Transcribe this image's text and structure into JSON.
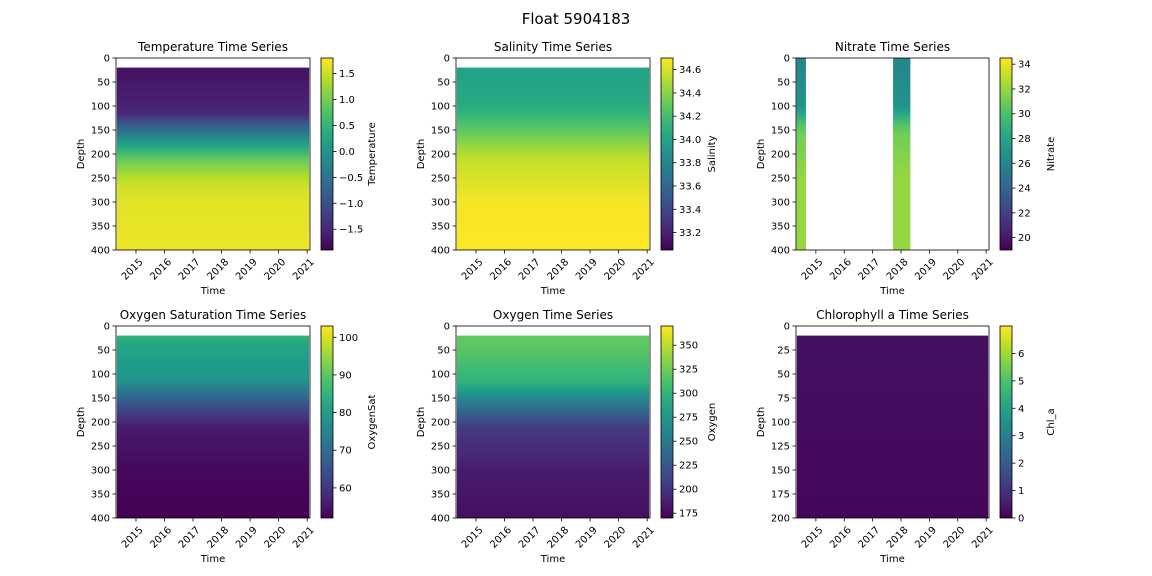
{
  "figure": {
    "title": "Float 5904183"
  },
  "chart_data": [
    {
      "type": "heatmap",
      "title": "Temperature Time Series",
      "xlabel": "Time",
      "ylabel": "Depth",
      "colorbar_label": "Temperature",
      "x_ticks": [
        "2015",
        "2016",
        "2017",
        "2018",
        "2019",
        "2020",
        "2021"
      ],
      "xlim": [
        2014.3,
        2021.1
      ],
      "y_ticks": [
        0,
        50,
        100,
        150,
        200,
        250,
        300,
        350,
        400
      ],
      "ylim": [
        400,
        0
      ],
      "cbar_ticks": [
        "−1.5",
        "−1.0",
        "−0.5",
        "0.0",
        "0.5",
        "1.0",
        "1.5"
      ],
      "cbar_range": [
        -1.9,
        1.8
      ],
      "surface_band_depth": 20,
      "profile": [
        [
          0,
          -1.7
        ],
        [
          20,
          -1.7
        ],
        [
          100,
          -1.5
        ],
        [
          150,
          -0.2
        ],
        [
          200,
          0.9
        ],
        [
          250,
          1.5
        ],
        [
          300,
          1.65
        ],
        [
          400,
          1.7
        ]
      ],
      "colormap": "viridis"
    },
    {
      "type": "heatmap",
      "title": "Salinity Time Series",
      "xlabel": "Time",
      "ylabel": "Depth",
      "colorbar_label": "Salinity",
      "x_ticks": [
        "2015",
        "2016",
        "2017",
        "2018",
        "2019",
        "2020",
        "2021"
      ],
      "xlim": [
        2014.3,
        2021.1
      ],
      "y_ticks": [
        0,
        50,
        100,
        150,
        200,
        250,
        300,
        350,
        400
      ],
      "ylim": [
        400,
        0
      ],
      "cbar_ticks": [
        "33.2",
        "33.4",
        "33.6",
        "33.8",
        "34.0",
        "34.2",
        "34.4",
        "34.6"
      ],
      "cbar_range": [
        33.05,
        34.7
      ],
      "surface_band_depth": 20,
      "profile": [
        [
          0,
          34.0
        ],
        [
          20,
          34.0
        ],
        [
          80,
          34.05
        ],
        [
          130,
          34.25
        ],
        [
          200,
          34.55
        ],
        [
          300,
          34.68
        ],
        [
          400,
          34.7
        ]
      ],
      "colormap": "viridis"
    },
    {
      "type": "heatmap",
      "title": "Nitrate Time Series",
      "xlabel": "Time",
      "ylabel": "Depth",
      "colorbar_label": "Nitrate",
      "x_ticks": [
        "2015",
        "2016",
        "2017",
        "2018",
        "2019",
        "2020",
        "2021"
      ],
      "xlim": [
        2014.3,
        2021.1
      ],
      "y_ticks": [
        0,
        50,
        100,
        150,
        200,
        250,
        300,
        350,
        400
      ],
      "ylim": [
        400,
        0
      ],
      "cbar_ticks": [
        "20",
        "22",
        "24",
        "26",
        "28",
        "30",
        "32",
        "34"
      ],
      "cbar_range": [
        19,
        34.5
      ],
      "data_windows": [
        [
          2014.32,
          2014.65
        ],
        [
          2017.72,
          2018.33
        ]
      ],
      "profile": [
        [
          0,
          26
        ],
        [
          100,
          27
        ],
        [
          150,
          31
        ],
        [
          250,
          32
        ],
        [
          400,
          32
        ]
      ],
      "colormap": "viridis"
    },
    {
      "type": "heatmap",
      "title": "Oxygen Saturation Time Series",
      "xlabel": "Time",
      "ylabel": "Depth",
      "colorbar_label": "OxygenSat",
      "x_ticks": [
        "2015",
        "2016",
        "2017",
        "2018",
        "2019",
        "2020",
        "2021"
      ],
      "xlim": [
        2014.3,
        2021.1
      ],
      "y_ticks": [
        0,
        50,
        100,
        150,
        200,
        250,
        300,
        350,
        400
      ],
      "ylim": [
        400,
        0
      ],
      "cbar_ticks": [
        "60",
        "70",
        "80",
        "90",
        "100"
      ],
      "cbar_range": [
        52,
        103
      ],
      "surface_band_depth": 20,
      "profile": [
        [
          0,
          85
        ],
        [
          20,
          82
        ],
        [
          100,
          78
        ],
        [
          150,
          65
        ],
        [
          200,
          56
        ],
        [
          300,
          53
        ],
        [
          400,
          52
        ]
      ],
      "colormap": "viridis"
    },
    {
      "type": "heatmap",
      "title": "Oxygen Time Series",
      "xlabel": "Time",
      "ylabel": "Depth",
      "colorbar_label": "Oxygen",
      "x_ticks": [
        "2015",
        "2016",
        "2017",
        "2018",
        "2019",
        "2020",
        "2021"
      ],
      "xlim": [
        2014.3,
        2021.1
      ],
      "y_ticks": [
        0,
        50,
        100,
        150,
        200,
        250,
        300,
        350,
        400
      ],
      "ylim": [
        400,
        0
      ],
      "cbar_ticks": [
        "175",
        "200",
        "225",
        "250",
        "275",
        "300",
        "325",
        "350"
      ],
      "cbar_range": [
        170,
        370
      ],
      "surface_band_depth": 20,
      "profile": [
        [
          0,
          320
        ],
        [
          20,
          320
        ],
        [
          100,
          300
        ],
        [
          150,
          250
        ],
        [
          200,
          205
        ],
        [
          300,
          185
        ],
        [
          400,
          178
        ]
      ],
      "colormap": "viridis"
    },
    {
      "type": "heatmap",
      "title": "Chlorophyll a Time Series",
      "xlabel": "Time",
      "ylabel": "Depth",
      "colorbar_label": "Chl_a",
      "x_ticks": [
        "2015",
        "2016",
        "2017",
        "2018",
        "2019",
        "2020",
        "2021"
      ],
      "xlim": [
        2014.3,
        2021.1
      ],
      "y_ticks": [
        0,
        25,
        50,
        75,
        100,
        125,
        150,
        175,
        200
      ],
      "ylim": [
        200,
        0
      ],
      "cbar_ticks": [
        "0",
        "1",
        "2",
        "3",
        "4",
        "5",
        "6"
      ],
      "cbar_range": [
        0,
        7
      ],
      "surface_band_depth": 10,
      "profile": [
        [
          0,
          0.3
        ],
        [
          200,
          0.1
        ]
      ],
      "colormap": "viridis"
    }
  ]
}
